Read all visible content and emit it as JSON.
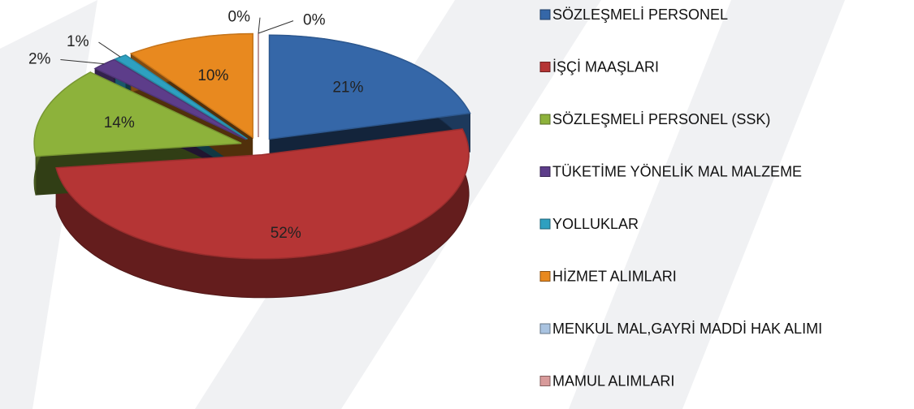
{
  "chart_data": {
    "type": "pie",
    "categories": [
      "SÖZLEŞMELİ PERSONEL",
      "İŞÇİ MAAŞLARI",
      "SÖZLEŞMELİ PERSONEL (SSK)",
      "TÜKETİME YÖNELİK MAL MALZEME",
      "YOLLUKLAR",
      "HİZMET ALIMLARI",
      "MENKUL MAL,GAYRİ MADDİ HAK ALIMI",
      "MAMUL ALIMLARI"
    ],
    "values": [
      21,
      52,
      14,
      2,
      1,
      10,
      0,
      0
    ],
    "value_labels": [
      "21%",
      "52%",
      "14%",
      "2%",
      "1%",
      "10%",
      "0%",
      "0%"
    ],
    "colors": [
      "#3567a8",
      "#b53535",
      "#8db23b",
      "#5d3d8a",
      "#2ea0c0",
      "#e8891f",
      "#a9c3e0",
      "#d89a9a"
    ],
    "legend": "right"
  }
}
